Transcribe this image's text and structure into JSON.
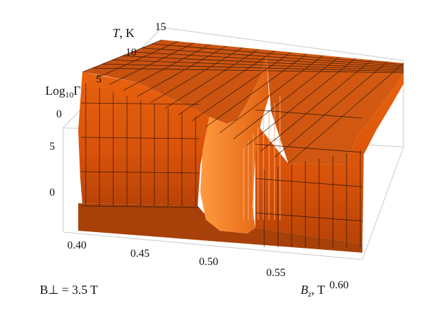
{
  "chart_data": {
    "type": "surface3d",
    "field_label": "B⊥ = 3.5 T",
    "x_axis": {
      "name": "B",
      "sub": "z",
      "unit": ", T",
      "range": [
        0.39,
        0.61
      ],
      "ticks": [
        "0.40",
        "0.45",
        "0.50",
        "0.55",
        "0.60"
      ],
      "tick_values": [
        0.4,
        0.45,
        0.5,
        0.55,
        0.6
      ]
    },
    "y_axis": {
      "name": "T",
      "unit": ", K",
      "range": [
        0,
        15
      ],
      "ticks": [
        "10",
        "15"
      ],
      "tick_values": [
        10,
        15
      ]
    },
    "z_axis": {
      "name": "Log",
      "sub": "10",
      "suffix": "Γ",
      "range": [
        -5,
        10
      ],
      "ticks_back": [
        "5",
        "0"
      ],
      "tick_values_back": [
        5,
        0
      ],
      "ticks_front": [
        "5",
        "0"
      ],
      "tick_values_front": [
        5,
        0
      ]
    },
    "surface": {
      "resonance_Bz": 0.5,
      "low_T_plateau": -4.5,
      "high_T_plateau": 9
    },
    "colors": {
      "surface_light": "#ff7a26",
      "surface_mid": "#e0580e",
      "surface_dark": "#a83a08",
      "mesh": "#1a0d05",
      "box": "#c8c8c8"
    }
  }
}
